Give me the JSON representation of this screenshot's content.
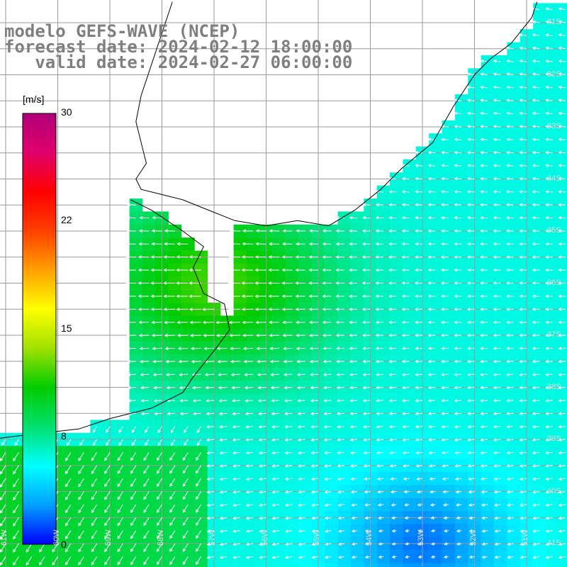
{
  "title": {
    "line1": "modelo GEFS-WAVE (NCEP)",
    "line2": "forecast date: 2024-02-12 18:00:00",
    "line3": "   valid date: 2024-02-27 06:00:00"
  },
  "colorbar": {
    "units": "[m/s]",
    "ticks": [
      "30",
      "22",
      "15",
      "8",
      "0"
    ],
    "tick_values": [
      30,
      22,
      15,
      8,
      0
    ],
    "range": [
      0,
      30
    ],
    "colors": [
      "#0000ff",
      "#00a0ff",
      "#00ffff",
      "#00e070",
      "#00cc00",
      "#a0e000",
      "#ffff00",
      "#ffa000",
      "#ff4000",
      "#ff0000",
      "#e0006a",
      "#b0007a"
    ]
  },
  "grid": {
    "lat_labels": [
      "31S",
      "32S",
      "33S",
      "34S",
      "35S",
      "36S",
      "37S",
      "38S",
      "39S",
      "40S",
      "41S"
    ],
    "lon_labels": [
      "61W",
      "60W",
      "59W",
      "58W",
      "57W",
      "56W",
      "55W",
      "54W",
      "53W",
      "52W",
      "51W"
    ]
  },
  "colors": {
    "land": "#ffffff",
    "coast": "#000000",
    "gridline": "#9a9a9a",
    "arrow": "#ffffff",
    "title_text": "#7f7f7f"
  },
  "field": {
    "variable": "wind speed",
    "arrow_direction": "mostly westward (east to west), turning south-westward in the south-west corner",
    "max_speed_region": "12 m/s near 36S 57W",
    "min_speed_region": "2 m/s near 41S 53W"
  }
}
